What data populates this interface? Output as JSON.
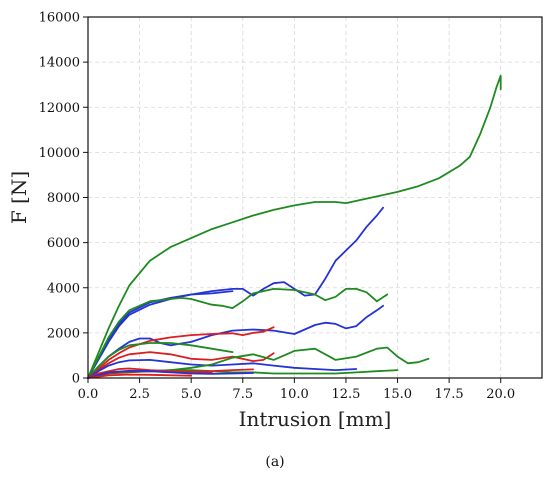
{
  "chart_data": {
    "type": "line",
    "xlabel": "Intrusion [mm]",
    "ylabel": "F [N]",
    "caption": "(a)",
    "grid": true,
    "xlim": [
      0,
      22
    ],
    "ylim": [
      0,
      16000
    ],
    "xticks": [
      "0.0",
      "2.5",
      "5.0",
      "7.5",
      "10.0",
      "12.5",
      "15.0",
      "17.5",
      "20.0"
    ],
    "yticks": [
      "0",
      "2000",
      "4000",
      "6000",
      "8000",
      "10000",
      "12000",
      "14000",
      "16000"
    ],
    "colors": {
      "green": "#1f8a1f",
      "blue": "#2433d3",
      "red": "#d91f1f",
      "grid": "#d8d8d8",
      "axis": "#111111"
    },
    "series": [
      {
        "color": "green",
        "x": [
          0,
          0.5,
          1,
          1.5,
          2,
          3,
          4,
          5,
          6,
          7,
          8,
          9,
          10,
          11,
          12,
          12.5,
          13,
          14,
          15,
          16,
          17,
          18,
          18.5,
          19,
          19.5,
          19.8,
          20,
          20,
          20
        ],
        "y": [
          0,
          1100,
          2200,
          3200,
          4100,
          5200,
          5800,
          6200,
          6600,
          6900,
          7200,
          7450,
          7650,
          7800,
          7800,
          7750,
          7850,
          8050,
          8250,
          8500,
          8850,
          9400,
          9800,
          10800,
          12000,
          12900,
          13400,
          12800,
          13300
        ]
      },
      {
        "color": "blue",
        "x": [
          0,
          0.5,
          1,
          1.5,
          2,
          3,
          4,
          5,
          6,
          7,
          7.5,
          8,
          8.5,
          9,
          9.5,
          10,
          10.5,
          11,
          11.5,
          12,
          13,
          13.5,
          14,
          14.3
        ],
        "y": [
          0,
          800,
          1600,
          2300,
          2800,
          3250,
          3500,
          3700,
          3850,
          3950,
          3950,
          3650,
          3950,
          4200,
          4250,
          3950,
          3650,
          3700,
          4400,
          5200,
          6100,
          6700,
          7200,
          7550
        ]
      },
      {
        "color": "blue",
        "x": [
          0,
          0.5,
          1,
          1.5,
          2,
          3,
          4,
          5,
          6,
          7
        ],
        "y": [
          0,
          850,
          1700,
          2400,
          2900,
          3350,
          3550,
          3700,
          3750,
          3850
        ]
      },
      {
        "color": "green",
        "x": [
          0,
          0.5,
          1,
          1.5,
          2,
          3,
          4,
          4.5,
          5,
          6,
          6.5,
          7,
          7.5,
          8,
          9,
          10,
          11,
          11.5,
          12,
          12.5,
          13,
          13.5,
          14,
          14.5
        ],
        "y": [
          0,
          900,
          1800,
          2500,
          3000,
          3400,
          3500,
          3550,
          3500,
          3250,
          3200,
          3100,
          3400,
          3750,
          3950,
          3900,
          3700,
          3450,
          3600,
          3950,
          3950,
          3800,
          3400,
          3700
        ]
      },
      {
        "color": "blue",
        "x": [
          0,
          0.5,
          1,
          1.5,
          2,
          2.5,
          3,
          3.5,
          4,
          5,
          6,
          7,
          8,
          9,
          10,
          11,
          11.5,
          12,
          12.5,
          13,
          13.5,
          14,
          14.3
        ],
        "y": [
          0,
          500,
          950,
          1300,
          1600,
          1750,
          1750,
          1550,
          1450,
          1600,
          1900,
          2100,
          2150,
          2100,
          1950,
          2350,
          2450,
          2400,
          2200,
          2300,
          2700,
          3000,
          3200
        ]
      },
      {
        "color": "red",
        "x": [
          0,
          0.5,
          1,
          1.5,
          2,
          3,
          4,
          5,
          6,
          7,
          7.5,
          8,
          8.5,
          9
        ],
        "y": [
          0,
          400,
          800,
          1100,
          1350,
          1650,
          1800,
          1900,
          1950,
          1980,
          1900,
          2000,
          2050,
          2250
        ]
      },
      {
        "color": "green",
        "x": [
          0,
          0.5,
          1,
          1.5,
          2,
          3,
          4,
          5,
          6,
          7
        ],
        "y": [
          0,
          500,
          950,
          1250,
          1450,
          1550,
          1550,
          1450,
          1300,
          1150
        ]
      },
      {
        "color": "red",
        "x": [
          0,
          0.5,
          1,
          1.5,
          2,
          3,
          4,
          5,
          6,
          7,
          8,
          8.5,
          9
        ],
        "y": [
          0,
          350,
          650,
          900,
          1050,
          1150,
          1050,
          850,
          800,
          950,
          750,
          800,
          1100
        ]
      },
      {
        "color": "blue",
        "x": [
          0,
          0.5,
          1,
          1.5,
          2,
          3,
          4,
          5,
          6,
          7,
          8,
          9,
          10,
          11,
          12,
          13
        ],
        "y": [
          0,
          300,
          550,
          700,
          780,
          800,
          700,
          600,
          550,
          600,
          650,
          550,
          450,
          400,
          350,
          400
        ]
      },
      {
        "color": "green",
        "x": [
          0,
          1,
          2,
          3,
          4,
          5,
          6,
          7,
          8,
          9,
          10,
          11,
          12,
          13,
          14,
          14.5,
          15,
          15.5,
          16,
          16.5
        ],
        "y": [
          0,
          250,
          300,
          300,
          350,
          450,
          600,
          900,
          1050,
          800,
          1200,
          1300,
          800,
          950,
          1300,
          1350,
          950,
          650,
          700,
          850
        ]
      },
      {
        "color": "green",
        "x": [
          0,
          1,
          2,
          3,
          4,
          5,
          6,
          7,
          8,
          9,
          10,
          11,
          12,
          13,
          14,
          15
        ],
        "y": [
          0,
          200,
          250,
          300,
          350,
          350,
          300,
          250,
          250,
          200,
          200,
          200,
          200,
          250,
          300,
          350
        ]
      },
      {
        "color": "red",
        "x": [
          0,
          1,
          2,
          3,
          4,
          5,
          6
        ],
        "y": [
          0,
          220,
          280,
          300,
          280,
          260,
          240
        ]
      },
      {
        "color": "red",
        "x": [
          0,
          0.5,
          1,
          1.5,
          2,
          3,
          4,
          5,
          6,
          7,
          8
        ],
        "y": [
          0,
          200,
          300,
          400,
          420,
          350,
          300,
          280,
          300,
          350,
          380
        ]
      },
      {
        "color": "blue",
        "x": [
          0,
          1,
          2,
          3,
          4,
          5,
          6,
          7,
          8
        ],
        "y": [
          0,
          250,
          320,
          300,
          250,
          200,
          180,
          200,
          220
        ]
      },
      {
        "color": "red",
        "x": [
          0,
          1,
          2,
          3,
          4,
          5
        ],
        "y": [
          0,
          120,
          150,
          140,
          120,
          100
        ]
      }
    ]
  }
}
